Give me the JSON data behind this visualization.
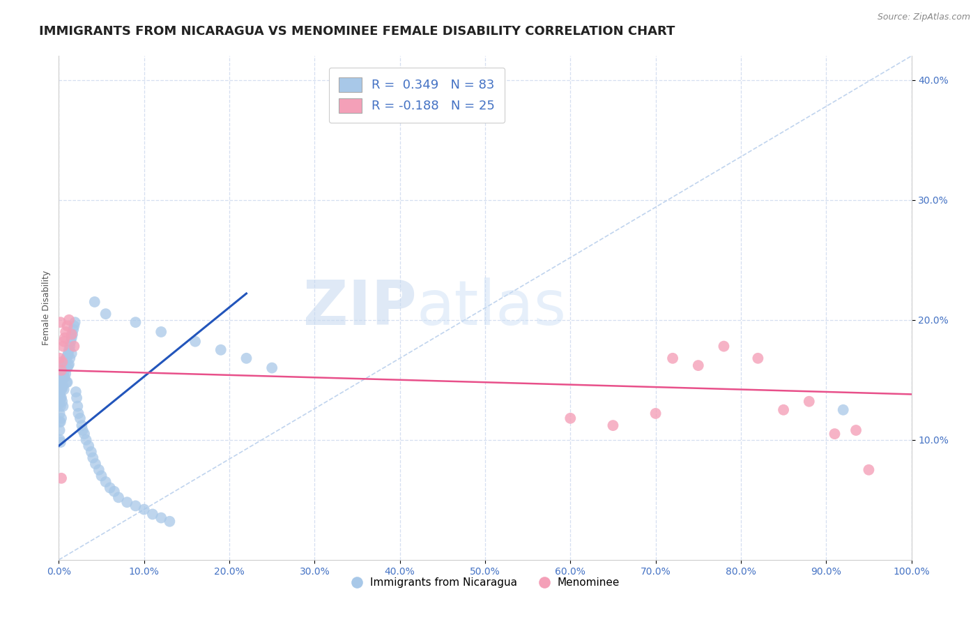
{
  "title": "IMMIGRANTS FROM NICARAGUA VS MENOMINEE FEMALE DISABILITY CORRELATION CHART",
  "source": "Source: ZipAtlas.com",
  "ylabel": "Female Disability",
  "xlim": [
    0.0,
    1.0
  ],
  "ylim": [
    0.0,
    0.42
  ],
  "x_ticks": [
    0.0,
    0.1,
    0.2,
    0.3,
    0.4,
    0.5,
    0.6,
    0.7,
    0.8,
    0.9,
    1.0
  ],
  "y_ticks": [
    0.1,
    0.2,
    0.3,
    0.4
  ],
  "blue_R": 0.349,
  "blue_N": 83,
  "pink_R": -0.188,
  "pink_N": 25,
  "blue_color": "#a8c8e8",
  "pink_color": "#f4a0b8",
  "blue_line_color": "#2255bb",
  "pink_line_color": "#e8508a",
  "diagonal_color": "#c0d4ee",
  "legend_label_blue": "Immigrants from Nicaragua",
  "legend_label_pink": "Menominee",
  "watermark_zip": "ZIP",
  "watermark_atlas": "atlas",
  "background_color": "#ffffff",
  "grid_color": "#d5dff0",
  "title_fontsize": 13,
  "axis_label_fontsize": 9,
  "tick_fontsize": 10,
  "legend_fontsize": 13,
  "blue_scatter_x": [
    0.0005,
    0.0008,
    0.001,
    0.001,
    0.0012,
    0.0015,
    0.0015,
    0.002,
    0.002,
    0.002,
    0.002,
    0.0025,
    0.003,
    0.003,
    0.003,
    0.003,
    0.0035,
    0.004,
    0.004,
    0.004,
    0.005,
    0.005,
    0.005,
    0.005,
    0.006,
    0.006,
    0.006,
    0.007,
    0.007,
    0.008,
    0.008,
    0.009,
    0.009,
    0.01,
    0.01,
    0.01,
    0.011,
    0.011,
    0.012,
    0.012,
    0.013,
    0.013,
    0.014,
    0.015,
    0.015,
    0.016,
    0.017,
    0.018,
    0.019,
    0.02,
    0.021,
    0.022,
    0.023,
    0.025,
    0.027,
    0.028,
    0.03,
    0.032,
    0.035,
    0.038,
    0.04,
    0.043,
    0.047,
    0.05,
    0.055,
    0.06,
    0.065,
    0.07,
    0.08,
    0.09,
    0.1,
    0.11,
    0.12,
    0.13,
    0.042,
    0.055,
    0.09,
    0.12,
    0.16,
    0.19,
    0.22,
    0.25,
    0.92
  ],
  "blue_scatter_y": [
    0.13,
    0.115,
    0.108,
    0.122,
    0.1,
    0.145,
    0.138,
    0.135,
    0.128,
    0.115,
    0.098,
    0.148,
    0.152,
    0.142,
    0.135,
    0.118,
    0.155,
    0.15,
    0.143,
    0.132,
    0.16,
    0.153,
    0.145,
    0.128,
    0.163,
    0.155,
    0.142,
    0.165,
    0.152,
    0.167,
    0.155,
    0.168,
    0.148,
    0.17,
    0.16,
    0.148,
    0.172,
    0.162,
    0.175,
    0.163,
    0.178,
    0.168,
    0.182,
    0.185,
    0.172,
    0.188,
    0.192,
    0.195,
    0.198,
    0.14,
    0.135,
    0.128,
    0.122,
    0.118,
    0.112,
    0.108,
    0.105,
    0.1,
    0.095,
    0.09,
    0.085,
    0.08,
    0.075,
    0.07,
    0.065,
    0.06,
    0.057,
    0.052,
    0.048,
    0.045,
    0.042,
    0.038,
    0.035,
    0.032,
    0.215,
    0.205,
    0.198,
    0.19,
    0.182,
    0.175,
    0.168,
    0.16,
    0.125
  ],
  "pink_scatter_x": [
    0.001,
    0.002,
    0.003,
    0.004,
    0.005,
    0.006,
    0.007,
    0.008,
    0.01,
    0.012,
    0.015,
    0.018,
    0.6,
    0.65,
    0.7,
    0.72,
    0.75,
    0.78,
    0.82,
    0.85,
    0.88,
    0.91,
    0.935,
    0.95,
    0.003
  ],
  "pink_scatter_y": [
    0.168,
    0.198,
    0.158,
    0.165,
    0.178,
    0.182,
    0.185,
    0.19,
    0.195,
    0.2,
    0.188,
    0.178,
    0.118,
    0.112,
    0.122,
    0.168,
    0.162,
    0.178,
    0.168,
    0.125,
    0.132,
    0.105,
    0.108,
    0.075,
    0.068
  ],
  "blue_line_x": [
    0.0,
    0.22
  ],
  "blue_line_y": [
    0.095,
    0.222
  ],
  "pink_line_x": [
    0.0,
    1.0
  ],
  "pink_line_y": [
    0.158,
    0.138
  ]
}
